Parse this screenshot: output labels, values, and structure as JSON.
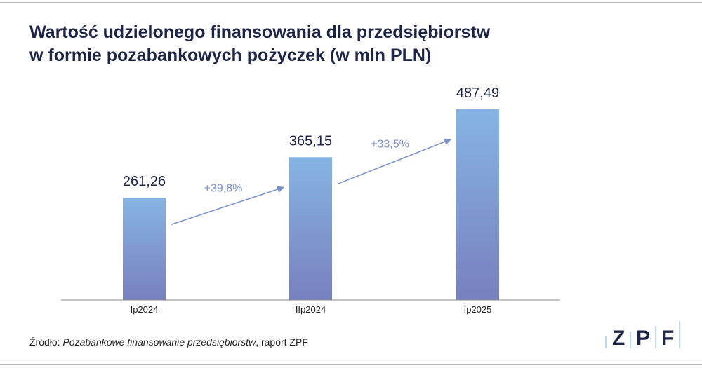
{
  "title": {
    "line1": "Wartość udzielonego finansowania dla przedsiębiorstw",
    "line2": "w formie pozabankowych pożyczek (w mln PLN)"
  },
  "source": {
    "prefix": "Źródło: ",
    "italic": "Pozabankowe finansowanie przedsiębiorstw",
    "suffix": ", raport ZPF"
  },
  "logo": {
    "text": "ZPF"
  },
  "colors": {
    "bar_top": "#86b4e2",
    "bar_bottom": "#7880bf",
    "arrow": "#7b90cc",
    "text": "#1e2544"
  },
  "chart_data": {
    "type": "bar",
    "title": "Wartość udzielonego finansowania dla przedsiębiorstw w formie pozabankowych pożyczek (w mln PLN)",
    "categories": [
      "Ip2024",
      "IIp2024",
      "Ip2025"
    ],
    "values": [
      261.26,
      365.15,
      487.49
    ],
    "value_labels": [
      "261,26",
      "365,15",
      "487,49"
    ],
    "growth_annotations": [
      {
        "from": "Ip2024",
        "to": "IIp2024",
        "label": "+39,8%"
      },
      {
        "from": "IIp2024",
        "to": "Ip2025",
        "label": "+33,5%"
      }
    ],
    "ylim": [
      0,
      487.49
    ],
    "grid": false,
    "legend": "none"
  }
}
